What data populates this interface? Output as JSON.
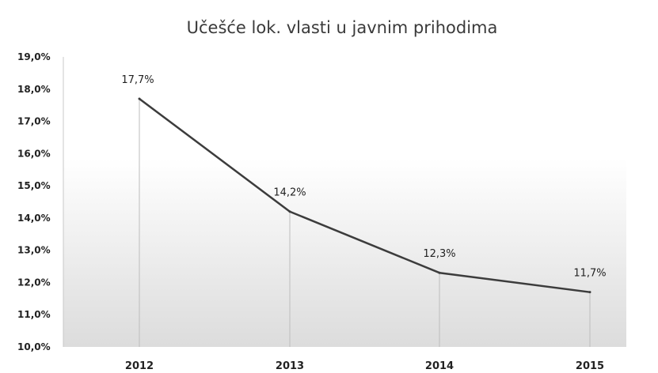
{
  "chart_data": {
    "type": "line",
    "title": "Učešće lok. vlasti u javnim prihodima",
    "categories": [
      "2012",
      "2013",
      "2014",
      "2015"
    ],
    "series": [
      {
        "values": [
          17.7,
          14.2,
          12.3,
          11.7
        ]
      }
    ],
    "data_labels": [
      "17,7%",
      "14,2%",
      "12,3%",
      "11,7%"
    ],
    "y_ticks": [
      "10,0%",
      "11,0%",
      "12,0%",
      "13,0%",
      "14,0%",
      "15,0%",
      "16,0%",
      "17,0%",
      "18,0%",
      "19,0%"
    ],
    "ylim": [
      10,
      19
    ],
    "xlabel": "",
    "ylabel": "",
    "legend": "none",
    "grid": false,
    "drop_lines": true,
    "colors": {
      "line": "#3c3c3c",
      "drop_line": "#bdbdbd",
      "background_top": "#ffffff",
      "background_bottom": "#dcdcdc"
    }
  }
}
